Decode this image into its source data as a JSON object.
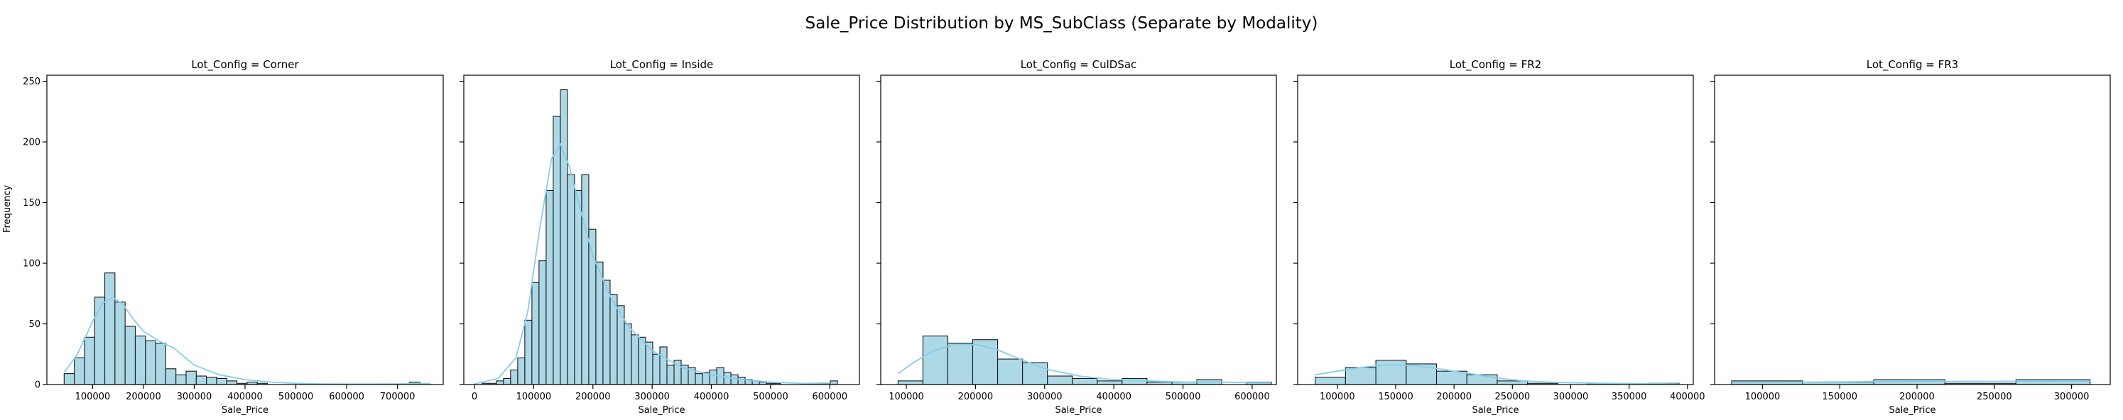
{
  "figure": {
    "title": "Sale_Price Distribution by MS_SubClass (Separate by Modality)",
    "ylabel": "Frequency"
  },
  "colors": {
    "bar_fill": "#add8e6",
    "bar_edge": "#1a1a1a",
    "kde": "#87ceeb",
    "axes": "#000000"
  },
  "chart_data": [
    {
      "type": "bar",
      "title": "Lot_Config = Corner",
      "xlabel": "Sale_Price",
      "ylabel": "Frequency",
      "xlim": [
        10000,
        790000
      ],
      "ylim": [
        0,
        255
      ],
      "xticks": [
        100000,
        200000,
        300000,
        400000,
        500000,
        600000,
        700000
      ],
      "xtick_labels": [
        "100000",
        "200000",
        "300000",
        "400000",
        "500000",
        "600000",
        "700000"
      ],
      "yticks": [
        0,
        50,
        100,
        150,
        200,
        250
      ],
      "ytick_labels": [
        "0",
        "50",
        "100",
        "150",
        "200",
        "250"
      ],
      "bin_edges": [
        44000,
        64000,
        84000,
        104000,
        124000,
        144000,
        164000,
        184000,
        204000,
        224000,
        244000,
        264000,
        284000,
        304000,
        324000,
        344000,
        364000,
        384000,
        404000,
        424000,
        444000,
        464000,
        484000,
        504000,
        524000,
        544000,
        564000,
        584000,
        604000,
        624000,
        644000,
        664000,
        684000,
        704000,
        724000,
        744000,
        764000
      ],
      "counts": [
        9,
        22,
        39,
        72,
        92,
        68,
        48,
        40,
        36,
        34,
        13,
        8,
        11,
        7,
        6,
        5,
        3,
        1,
        2,
        1,
        0,
        0,
        0,
        0,
        0,
        0,
        0,
        0,
        0,
        0,
        0,
        0,
        0,
        0,
        2,
        0
      ],
      "kde_x": [
        44000,
        70000,
        100000,
        120000,
        140000,
        160000,
        180000,
        200000,
        230000,
        260000,
        300000,
        350000,
        400000,
        450000,
        500000,
        550000,
        600000,
        650000,
        700000,
        750000,
        765000
      ],
      "kde_y": [
        10,
        25,
        52,
        67,
        72,
        66,
        54,
        44,
        36,
        30,
        16,
        8,
        4,
        2,
        1,
        0.5,
        0.4,
        0.4,
        0.5,
        0.8,
        0.8
      ]
    },
    {
      "type": "bar",
      "title": "Lot_Config = Inside",
      "xlabel": "Sale_Price",
      "ylabel": "",
      "xlim": [
        -18000,
        650000
      ],
      "ylim": [
        0,
        255
      ],
      "xticks": [
        0,
        100000,
        200000,
        300000,
        400000,
        500000,
        600000
      ],
      "xtick_labels": [
        "0",
        "100000",
        "200000",
        "300000",
        "400000",
        "500000",
        "600000"
      ],
      "yticks": [
        0,
        50,
        100,
        150,
        200,
        250
      ],
      "ytick_labels": [
        "",
        "",
        "",
        "",
        "",
        ""
      ],
      "bin_edges": [
        12789,
        25000,
        37000,
        49000,
        61000,
        73000,
        85000,
        97000,
        109000,
        121000,
        133000,
        145000,
        157000,
        169000,
        181000,
        193000,
        205000,
        217000,
        229000,
        241000,
        253000,
        265000,
        277000,
        289000,
        301000,
        313000,
        325000,
        337000,
        349000,
        361000,
        373000,
        385000,
        397000,
        409000,
        421000,
        433000,
        445000,
        457000,
        469000,
        481000,
        493000,
        505000,
        517000,
        529000,
        541000,
        553000,
        565000,
        577000,
        589000,
        601000,
        613000
      ],
      "counts": [
        1,
        1,
        3,
        5,
        12,
        22,
        53,
        84,
        102,
        160,
        221,
        243,
        173,
        160,
        173,
        128,
        101,
        86,
        74,
        65,
        50,
        41,
        39,
        35,
        25,
        31,
        16,
        20,
        16,
        14,
        9,
        10,
        12,
        14,
        10,
        8,
        6,
        4,
        3,
        2,
        1,
        1,
        0,
        0,
        0,
        1,
        1,
        1,
        1,
        3
      ],
      "kde_x": [
        0,
        40000,
        70000,
        90000,
        110000,
        130000,
        145000,
        160000,
        180000,
        200000,
        230000,
        260000,
        300000,
        350000,
        400000,
        450000,
        500000,
        550000,
        600000,
        613000
      ],
      "kde_y": [
        0.5,
        5,
        22,
        60,
        128,
        186,
        198,
        180,
        142,
        106,
        72,
        48,
        28,
        14,
        8,
        4,
        2,
        1,
        0.5,
        0.5
      ]
    },
    {
      "type": "bar",
      "title": "Lot_Config = CulDSac",
      "xlabel": "Sale_Price",
      "ylabel": "",
      "xlim": [
        63000,
        635000
      ],
      "ylim": [
        0,
        255
      ],
      "xticks": [
        100000,
        200000,
        300000,
        400000,
        500000,
        600000
      ],
      "xtick_labels": [
        "100000",
        "200000",
        "300000",
        "400000",
        "500000",
        "600000"
      ],
      "yticks": [
        0,
        50,
        100,
        150,
        200,
        250
      ],
      "ytick_labels": [
        "",
        "",
        "",
        "",
        "",
        ""
      ],
      "bin_edges": [
        88000,
        124000,
        160000,
        196000,
        232000,
        268000,
        304000,
        340000,
        376000,
        412000,
        448000,
        484000,
        520000,
        556000,
        592000,
        628000
      ],
      "counts": [
        3,
        40,
        34,
        37,
        21,
        18,
        7,
        5,
        3,
        5,
        2,
        2,
        4,
        0,
        2
      ],
      "kde_x": [
        88000,
        110000,
        140000,
        170000,
        200000,
        230000,
        260000,
        300000,
        350000,
        400000,
        450000,
        500000,
        550000,
        600000,
        628000
      ],
      "kde_y": [
        9,
        18,
        28,
        33,
        33,
        29,
        22,
        13,
        7,
        4,
        3,
        2,
        2,
        1.5,
        1.5
      ]
    },
    {
      "type": "bar",
      "title": "Lot_Config = FR2",
      "xlabel": "Sale_Price",
      "ylabel": "",
      "xlim": [
        66000,
        405000
      ],
      "ylim": [
        0,
        255
      ],
      "xticks": [
        100000,
        150000,
        200000,
        250000,
        300000,
        350000,
        400000
      ],
      "xtick_labels": [
        "100000",
        "150000",
        "200000",
        "250000",
        "300000",
        "350000",
        "400000"
      ],
      "yticks": [
        0,
        50,
        100,
        150,
        200,
        250
      ],
      "ytick_labels": [
        "",
        "",
        "",
        "",
        "",
        ""
      ],
      "bin_edges": [
        81000,
        107000,
        133000,
        159000,
        185000,
        211000,
        237000,
        263000,
        289000,
        315000,
        341000,
        367000,
        393000
      ],
      "counts": [
        6,
        14,
        20,
        17,
        11,
        8,
        3,
        1,
        0,
        1,
        0,
        1
      ],
      "kde_x": [
        81000,
        100000,
        120000,
        140000,
        160000,
        180000,
        200000,
        220000,
        240000,
        260000,
        280000,
        300000,
        330000,
        360000,
        393000
      ],
      "kde_y": [
        8,
        11,
        14,
        16,
        16,
        14,
        11,
        8,
        5,
        3,
        2,
        1.5,
        1,
        0.8,
        0.5
      ]
    },
    {
      "type": "bar",
      "title": "Lot_Config = FR3",
      "xlabel": "Sale_Price",
      "ylabel": "",
      "xlim": [
        69000,
        325000
      ],
      "ylim": [
        0,
        255
      ],
      "xticks": [
        100000,
        150000,
        200000,
        250000,
        300000
      ],
      "xtick_labels": [
        "100000",
        "150000",
        "200000",
        "250000",
        "300000"
      ],
      "yticks": [
        0,
        50,
        100,
        150,
        200,
        250
      ],
      "ytick_labels": [
        "",
        "",
        "",
        "",
        "",
        ""
      ],
      "bin_edges": [
        80000,
        126000,
        172000,
        218000,
        264000,
        312000
      ],
      "counts": [
        3,
        2,
        4,
        1,
        4
      ],
      "kde_x": [
        80000,
        110000,
        140000,
        170000,
        200000,
        230000,
        260000,
        290000,
        312000
      ],
      "kde_y": [
        1.6,
        1.8,
        2.1,
        2.4,
        2.6,
        2.6,
        2.7,
        2.8,
        2.9
      ]
    }
  ]
}
